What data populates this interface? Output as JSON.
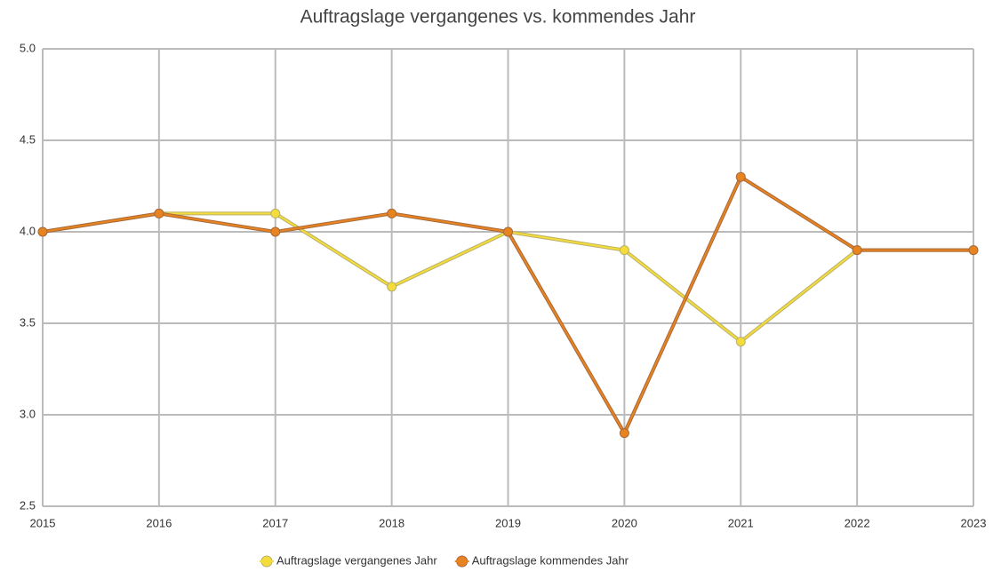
{
  "chart_data": {
    "type": "line",
    "title": "Auftragslage vergangenes vs. kommendes Jahr",
    "categories": [
      "2015",
      "2016",
      "2017",
      "2018",
      "2019",
      "2020",
      "2021",
      "2022",
      "2023"
    ],
    "series": [
      {
        "name": "Auftragslage vergangenes Jahr",
        "color": "#f4dc3a",
        "values": [
          4.0,
          4.1,
          4.1,
          3.7,
          4.0,
          3.9,
          3.4,
          3.9,
          3.9
        ]
      },
      {
        "name": "Auftragslage kommendes Jahr",
        "color": "#e8841f",
        "values": [
          4.0,
          4.1,
          4.0,
          4.1,
          4.0,
          2.9,
          4.3,
          3.9,
          3.9
        ]
      }
    ],
    "ylim": [
      2.5,
      5.0
    ],
    "yticks": [
      2.5,
      {
        "value": 3,
        "label": "3.0"
      },
      3.5,
      {
        "value": 4,
        "label": "4.0"
      },
      4.5,
      {
        "value": 5,
        "label": "5.0"
      }
    ],
    "grid": true,
    "legend": "bottom"
  }
}
